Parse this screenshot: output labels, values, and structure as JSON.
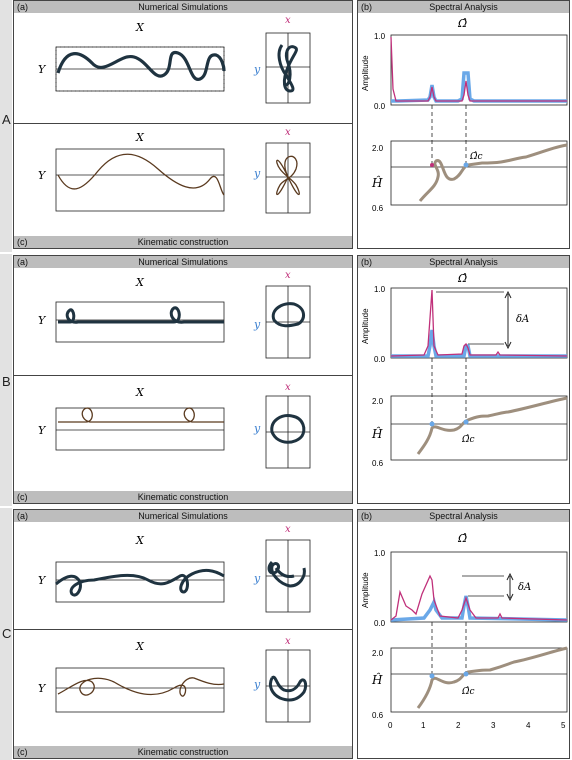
{
  "rows": [
    {
      "letter": "A",
      "left": {
        "tag_a": "(a)",
        "title_a": "Numerical Simulations",
        "tag_c": "(c)",
        "title_c": "Kinematic construction",
        "X": "X",
        "Y": "Y",
        "x": "x",
        "y": "y"
      },
      "right": {
        "tag": "(b)",
        "title": "Spectral Analysis",
        "omega": "Ω̂",
        "amp_label": "Amplitude",
        "y_top": "1.0",
        "y_bot": "0.0",
        "h_label": "Ĥ",
        "h_top": "2.0",
        "h_bot": "0.6",
        "omega_c": "Ω̂c",
        "deltaA": ""
      }
    },
    {
      "letter": "B",
      "left": {
        "tag_a": "(a)",
        "title_a": "Numerical Simulations",
        "tag_c": "(c)",
        "title_c": "Kinematic construction",
        "X": "X",
        "Y": "Y",
        "x": "x",
        "y": "y"
      },
      "right": {
        "tag": "(b)",
        "title": "Spectral Analysis",
        "omega": "Ω̂",
        "amp_label": "Amplitude",
        "y_top": "1.0",
        "y_bot": "0.0",
        "h_label": "Ĥ",
        "h_top": "2.0",
        "h_bot": "0.6",
        "omega_c": "Ω̂c",
        "deltaA": "δA"
      }
    },
    {
      "letter": "C",
      "left": {
        "tag_a": "(a)",
        "title_a": "Numerical Simulations",
        "tag_c": "(c)",
        "title_c": "Kinematic construction",
        "X": "X",
        "Y": "Y",
        "x": "x",
        "y": "y"
      },
      "right": {
        "tag": "(b)",
        "title": "Spectral Analysis",
        "omega": "Ω̂",
        "amp_label": "Amplitude",
        "y_top": "1.0",
        "y_bot": "0.0",
        "h_label": "Ĥ",
        "h_top": "2.0",
        "h_bot": "0.6",
        "omega_c": "Ω̂c",
        "deltaA": "δA",
        "x_ticks": [
          "0",
          "1",
          "2",
          "3",
          "4",
          "5"
        ]
      }
    }
  ],
  "colors": {
    "dark": "#1f3340",
    "brown": "#5a3a1f",
    "magenta": "#c0307a",
    "blue": "#6aa8e8",
    "taupe": "#9e8f7e"
  }
}
